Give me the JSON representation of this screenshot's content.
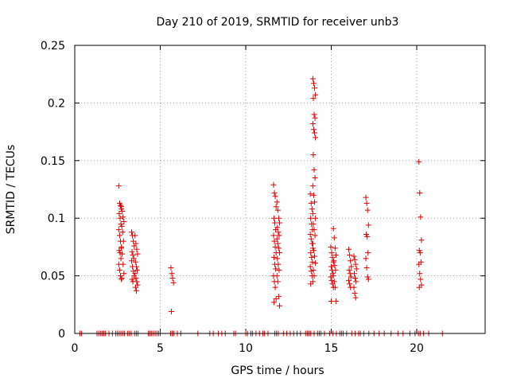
{
  "chart_data": {
    "type": "scatter",
    "title": "Day 210 of 2019, SRMTID for receiver unb3",
    "xlabel": "GPS time / hours",
    "ylabel": "SRMTID / TECUs",
    "xlim": [
      0,
      24
    ],
    "ylim": [
      0,
      0.25
    ],
    "xticks": [
      0,
      5,
      10,
      15,
      20
    ],
    "yticks": [
      0,
      0.05,
      0.1,
      0.15,
      0.2,
      0.25
    ],
    "xtick_labels": [
      "0",
      "5",
      "10",
      "15",
      "20"
    ],
    "ytick_labels": [
      "0",
      "0.05",
      "0.1",
      "0.15",
      "0.2",
      "0.25"
    ],
    "grid": true,
    "marker": "+",
    "color": "#dd0000",
    "series": [
      {
        "name": "SRMTID",
        "clusters": [
          {
            "x": 2.65,
            "values": [
              0.128,
              0.113,
              0.111,
              0.108,
              0.104,
              0.1,
              0.095,
              0.09,
              0.085,
              0.08,
              0.075,
              0.072,
              0.07,
              0.065,
              0.06,
              0.055,
              0.05,
              0.047
            ]
          },
          {
            "x": 2.8,
            "values": [
              0.11,
              0.106,
              0.101,
              0.097,
              0.093,
              0.088,
              0.08,
              0.074,
              0.069,
              0.06,
              0.052,
              0.048
            ]
          },
          {
            "x": 3.4,
            "values": [
              0.088,
              0.085,
              0.08,
              0.076,
              0.071,
              0.068,
              0.065,
              0.063,
              0.058,
              0.054,
              0.05,
              0.047,
              0.045
            ]
          },
          {
            "x": 3.6,
            "values": [
              0.085,
              0.078,
              0.073,
              0.069,
              0.062,
              0.058,
              0.055,
              0.052,
              0.048,
              0.045,
              0.042,
              0.04,
              0.037
            ]
          },
          {
            "x": 5.7,
            "values": [
              0.057,
              0.052,
              0.048,
              0.044,
              0.019
            ]
          },
          {
            "x": 11.7,
            "values": [
              0.129,
              0.122,
              0.119,
              0.11,
              0.1,
              0.096,
              0.09,
              0.085,
              0.08,
              0.075,
              0.07,
              0.066,
              0.06,
              0.056,
              0.05,
              0.045,
              0.04,
              0.03,
              0.027
            ]
          },
          {
            "x": 11.9,
            "values": [
              0.114,
              0.107,
              0.1,
              0.096,
              0.092,
              0.088,
              0.085,
              0.082,
              0.078,
              0.074,
              0.07,
              0.065,
              0.06,
              0.055,
              0.05,
              0.045,
              0.032,
              0.024
            ]
          },
          {
            "x": 13.85,
            "values": [
              0.121,
              0.113,
              0.108,
              0.104,
              0.1,
              0.095,
              0.09,
              0.086,
              0.082,
              0.078,
              0.074,
              0.07,
              0.066,
              0.062,
              0.058,
              0.054,
              0.05,
              0.045,
              0.043
            ]
          },
          {
            "x": 14.0,
            "values": [
              0.221,
              0.217,
              0.213,
              0.207,
              0.204,
              0.19,
              0.187,
              0.182,
              0.177,
              0.174,
              0.17,
              0.155,
              0.142,
              0.135,
              0.128,
              0.12,
              0.114,
              0.1,
              0.095,
              0.09,
              0.085,
              0.078,
              0.072,
              0.067,
              0.061,
              0.055,
              0.05
            ]
          },
          {
            "x": 15.05,
            "values": [
              0.075,
              0.07,
              0.066,
              0.062,
              0.058,
              0.055,
              0.052,
              0.049,
              0.046,
              0.043,
              0.04,
              0.028
            ]
          },
          {
            "x": 15.2,
            "values": [
              0.091,
              0.083,
              0.074,
              0.068,
              0.063,
              0.059,
              0.055,
              0.05,
              0.045,
              0.04,
              0.028
            ]
          },
          {
            "x": 16.1,
            "values": [
              0.073,
              0.068,
              0.063,
              0.058,
              0.055,
              0.052,
              0.049,
              0.046,
              0.043,
              0.04
            ]
          },
          {
            "x": 16.4,
            "values": [
              0.067,
              0.064,
              0.06,
              0.056,
              0.052,
              0.048,
              0.045,
              0.04,
              0.035,
              0.031
            ]
          },
          {
            "x": 17.1,
            "values": [
              0.118,
              0.113,
              0.107,
              0.094,
              0.086,
              0.084,
              0.07,
              0.065,
              0.057,
              0.049,
              0.047
            ]
          },
          {
            "x": 20.2,
            "values": [
              0.149,
              0.122,
              0.101,
              0.081,
              0.072,
              0.07,
              0.062,
              0.06,
              0.052,
              0.047,
              0.042,
              0.04
            ]
          }
        ],
        "zero_x": [
          0.3,
          0.4,
          1.3,
          1.4,
          1.5,
          1.6,
          1.7,
          1.8,
          2.0,
          2.2,
          2.4,
          2.5,
          2.6,
          2.7,
          2.8,
          2.9,
          3.1,
          3.2,
          3.3,
          3.5,
          3.6,
          3.7,
          4.3,
          4.4,
          4.5,
          4.6,
          4.7,
          4.8,
          4.9,
          5.0,
          5.6,
          5.7,
          5.8,
          6.0,
          6.2,
          7.2,
          7.9,
          8.1,
          8.4,
          8.6,
          8.8,
          9.3,
          9.4,
          10.0,
          10.1,
          10.3,
          10.4,
          10.6,
          10.8,
          11.0,
          11.1,
          11.3,
          11.7,
          11.8,
          11.9,
          12.2,
          12.4,
          12.6,
          12.8,
          13.0,
          13.2,
          13.5,
          13.6,
          13.7,
          13.8,
          14.0,
          14.2,
          14.3,
          14.4,
          14.6,
          14.9,
          15.1,
          15.3,
          15.5,
          15.6,
          15.7,
          15.9,
          16.2,
          16.4,
          16.6,
          16.7,
          16.9,
          17.2,
          17.5,
          17.8,
          18.1,
          18.5,
          18.9,
          19.2,
          19.6,
          19.9,
          20.1,
          20.2,
          20.4,
          20.7,
          21.5
        ]
      }
    ]
  }
}
